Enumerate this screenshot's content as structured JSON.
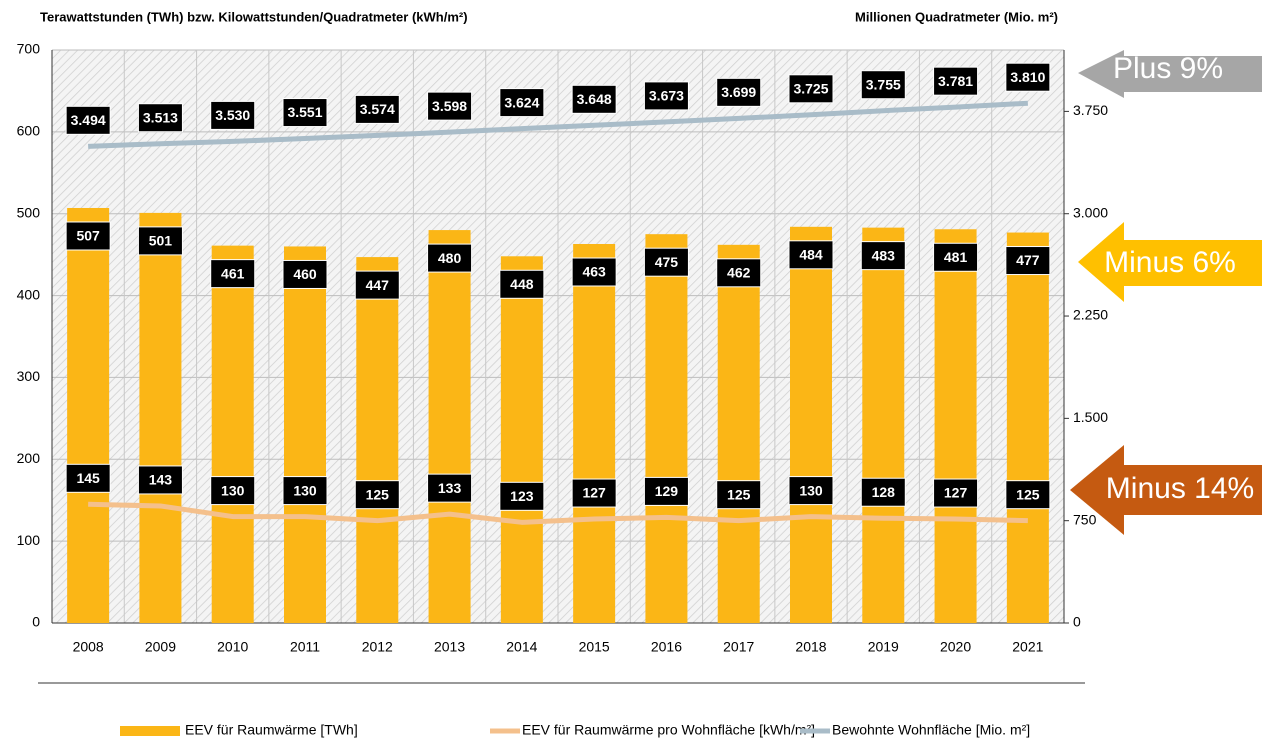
{
  "chart_data": {
    "type": "bar",
    "y_label": "Terawattstunden (TWh) bzw. Kilowattstunden/Quadratmeter (kWh/m²)",
    "y2_label": "Millionen Quadratmeter (Mio. m²)",
    "categories": [
      "2008",
      "2009",
      "2010",
      "2011",
      "2012",
      "2013",
      "2014",
      "2015",
      "2016",
      "2017",
      "2018",
      "2019",
      "2020",
      "2021"
    ],
    "series": [
      {
        "name": "EEV für Raumwärme [TWh]",
        "type": "bar",
        "color": "#fbb616",
        "values": [
          507,
          501,
          461,
          460,
          447,
          480,
          448,
          463,
          475,
          462,
          484,
          483,
          481,
          477
        ]
      },
      {
        "name": "EEV für Raumwärme pro Wohnfläche [kWh/m²]",
        "type": "line",
        "color": "#f4c08c",
        "values": [
          145,
          143,
          130,
          130,
          125,
          133,
          123,
          127,
          129,
          125,
          130,
          128,
          127,
          125
        ]
      },
      {
        "name": "Bewohnte Wohnfläche [Mio. m²]",
        "type": "line",
        "color": "#a9bcc8",
        "axis": "y2",
        "values": [
          3494,
          3513,
          3530,
          3551,
          3574,
          3598,
          3624,
          3648,
          3673,
          3699,
          3725,
          3755,
          3781,
          3810
        ],
        "value_labels": [
          "3.494",
          "3.513",
          "3.530",
          "3.551",
          "3.574",
          "3.598",
          "3.624",
          "3.648",
          "3.673",
          "3.699",
          "3.725",
          "3.755",
          "3.781",
          "3.810"
        ]
      }
    ],
    "ylim": [
      0,
      700
    ],
    "yticks": [
      0,
      100,
      200,
      300,
      400,
      500,
      600,
      700
    ],
    "y2lim": [
      0,
      4200
    ],
    "y2ticks": [
      0,
      750,
      {
        "value": 1500,
        "label": "1.500"
      },
      {
        "value": 2250,
        "label": "2.250"
      },
      {
        "value": 3000,
        "label": "3.000"
      },
      {
        "value": 3750,
        "label": "3.750"
      }
    ],
    "grid": true,
    "annotations": [
      {
        "text": "Plus 9%",
        "color": "#a6a6a6"
      },
      {
        "text": "Minus 6%",
        "color": "#ffc000"
      },
      {
        "text": "Minus 14%",
        "color": "#c55a11"
      }
    ]
  }
}
